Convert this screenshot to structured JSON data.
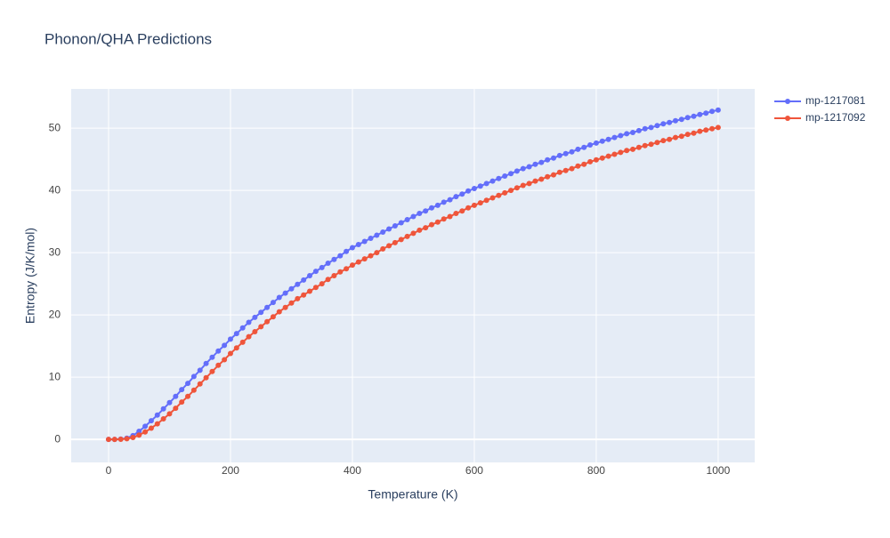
{
  "chart_data": {
    "type": "line",
    "title": "Phonon/QHA Predictions",
    "x_label": "Temperature (K)",
    "y_label": "Entropy (J/K/mol)",
    "x": [
      0,
      10,
      20,
      30,
      40,
      50,
      60,
      70,
      80,
      90,
      100,
      110,
      120,
      130,
      140,
      150,
      160,
      170,
      180,
      190,
      200,
      210,
      220,
      230,
      240,
      250,
      260,
      270,
      280,
      290,
      300,
      310,
      320,
      330,
      340,
      350,
      360,
      370,
      380,
      390,
      400,
      410,
      420,
      430,
      440,
      450,
      460,
      470,
      480,
      490,
      500,
      510,
      520,
      530,
      540,
      550,
      560,
      570,
      580,
      590,
      600,
      610,
      620,
      630,
      640,
      650,
      660,
      670,
      680,
      690,
      700,
      710,
      720,
      730,
      740,
      750,
      760,
      770,
      780,
      790,
      800,
      810,
      820,
      830,
      840,
      850,
      860,
      870,
      880,
      890,
      900,
      910,
      920,
      930,
      940,
      950,
      960,
      970,
      980,
      990,
      1000
    ],
    "series": [
      {
        "name": "mp-1217081",
        "color": "#636efa",
        "values": [
          0,
          0,
          0.05,
          0.2,
          0.6,
          1.3,
          2.1,
          3.0,
          3.9,
          4.9,
          5.9,
          6.9,
          8.0,
          9.0,
          10.1,
          11.1,
          12.2,
          13.2,
          14.2,
          15.1,
          16.1,
          17.0,
          17.9,
          18.8,
          19.6,
          20.4,
          21.2,
          22.0,
          22.8,
          23.5,
          24.2,
          24.9,
          25.6,
          26.3,
          27.0,
          27.6,
          28.3,
          28.9,
          29.5,
          30.2,
          30.8,
          31.3,
          31.8,
          32.3,
          32.8,
          33.3,
          33.8,
          34.3,
          34.8,
          35.3,
          35.8,
          36.3,
          36.7,
          37.2,
          37.6,
          38.1,
          38.5,
          39.0,
          39.4,
          39.9,
          40.3,
          40.7,
          41.1,
          41.5,
          41.9,
          42.3,
          42.7,
          43.1,
          43.5,
          43.8,
          44.2,
          44.5,
          44.9,
          45.2,
          45.6,
          45.9,
          46.2,
          46.6,
          46.9,
          47.3,
          47.6,
          47.9,
          48.2,
          48.5,
          48.8,
          49.1,
          49.3,
          49.6,
          49.9,
          50.1,
          50.4,
          50.7,
          50.9,
          51.2,
          51.4,
          51.7,
          51.9,
          52.2,
          52.4,
          52.7,
          52.9
        ]
      },
      {
        "name": "mp-1217092",
        "color": "#ef553b",
        "values": [
          0,
          0,
          0.02,
          0.1,
          0.3,
          0.7,
          1.2,
          1.8,
          2.5,
          3.3,
          4.1,
          5.0,
          6.0,
          6.9,
          7.9,
          8.9,
          9.9,
          10.9,
          11.9,
          12.8,
          13.8,
          14.7,
          15.6,
          16.5,
          17.3,
          18.1,
          18.9,
          19.7,
          20.5,
          21.2,
          21.9,
          22.6,
          23.2,
          23.8,
          24.4,
          25.0,
          25.7,
          26.3,
          26.9,
          27.4,
          28.0,
          28.5,
          29.0,
          29.5,
          30.0,
          30.6,
          31.1,
          31.6,
          32.1,
          32.6,
          33.1,
          33.6,
          34.0,
          34.5,
          34.9,
          35.4,
          35.8,
          36.3,
          36.7,
          37.2,
          37.6,
          38.0,
          38.4,
          38.8,
          39.2,
          39.6,
          40.0,
          40.4,
          40.8,
          41.1,
          41.5,
          41.8,
          42.2,
          42.5,
          42.9,
          43.2,
          43.5,
          43.9,
          44.2,
          44.6,
          44.9,
          45.2,
          45.5,
          45.8,
          46.1,
          46.4,
          46.6,
          46.9,
          47.2,
          47.4,
          47.7,
          48.0,
          48.2,
          48.5,
          48.7,
          49.0,
          49.2,
          49.5,
          49.7,
          49.9,
          50.1
        ]
      }
    ],
    "xlim": [
      -61.3,
      1060
    ],
    "ylim": [
      -3.7,
      56.3
    ],
    "xticks": [
      0,
      200,
      400,
      600,
      800,
      1000
    ],
    "yticks": [
      0,
      10,
      20,
      30,
      40,
      50
    ],
    "grid": true,
    "legend": "right"
  }
}
